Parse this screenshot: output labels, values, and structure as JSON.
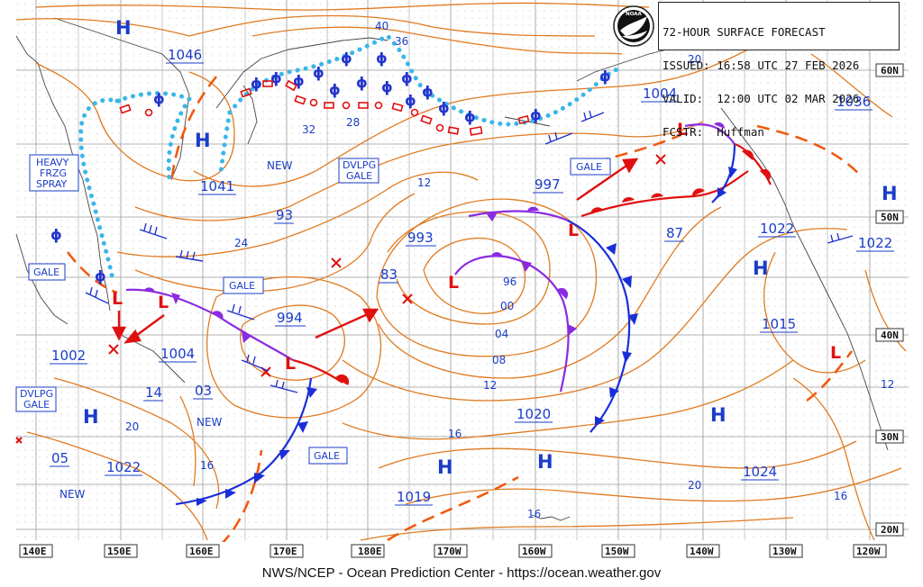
{
  "header": {
    "line1": "72-HOUR SURFACE FORECAST",
    "line2": "ISSUED: 16:58 UTC 27 FEB 2026",
    "line3": "VALID:  12:00 UTC 02 MAR 2026",
    "line4": "FCSTR:  Huffman",
    "logo_text": "NOAA"
  },
  "footer": "NWS/NCEP - Ocean Prediction Center - https://ocean.weather.gov",
  "lon_labels": [
    "140E",
    "150E",
    "160E",
    "170E",
    "180E",
    "170W",
    "160W",
    "150W",
    "140W",
    "130W",
    "120W"
  ],
  "lat_labels": [
    "60N",
    "50N",
    "40N",
    "30N",
    "20N"
  ],
  "centers": [
    {
      "kind": "H",
      "label": "1046"
    },
    {
      "kind": "H",
      "label": "1041"
    },
    {
      "kind": "L",
      "label": "997"
    },
    {
      "kind": "L",
      "label": "993"
    },
    {
      "kind": "L",
      "label": "994"
    },
    {
      "kind": "L",
      "label": "1004"
    },
    {
      "kind": "L",
      "label": "1004"
    },
    {
      "kind": "H",
      "label": "1036"
    },
    {
      "kind": "H",
      "label": "1022"
    },
    {
      "kind": "H",
      "label": "1022"
    },
    {
      "kind": "H",
      "label": "1015"
    },
    {
      "kind": "H",
      "label": "1020"
    },
    {
      "kind": "H",
      "label": "1024"
    },
    {
      "kind": "H",
      "label": "1019"
    },
    {
      "kind": "H",
      "label": "1022"
    },
    {
      "kind": "L",
      "label": "1002"
    }
  ],
  "boxed_labels": {
    "heavy_frzg_spray": [
      "HEAVY",
      "FRZG",
      "SPRAY"
    ],
    "gale": "GALE",
    "dvlpg_gale": [
      "DVLPG",
      "GALE"
    ]
  },
  "isobar_labels": [
    "40",
    "36",
    "32",
    "28",
    "24",
    "20",
    "16",
    "12",
    "93",
    "83",
    "96",
    "00",
    "04",
    "08",
    "12",
    "16",
    "20",
    "16",
    "14",
    "03",
    "05",
    "87",
    "NEW",
    "NEW",
    "NEW",
    "16",
    "20",
    "12"
  ],
  "colors": {
    "isobar": "#e07a20",
    "cold_front": "#1a2ed8",
    "warm_front": "#e01010",
    "occluded_front": "#8a2be2",
    "ice_edge": "#3bb6e8",
    "center_mark": "#e01010",
    "text_blue": "#1a3cc8"
  }
}
